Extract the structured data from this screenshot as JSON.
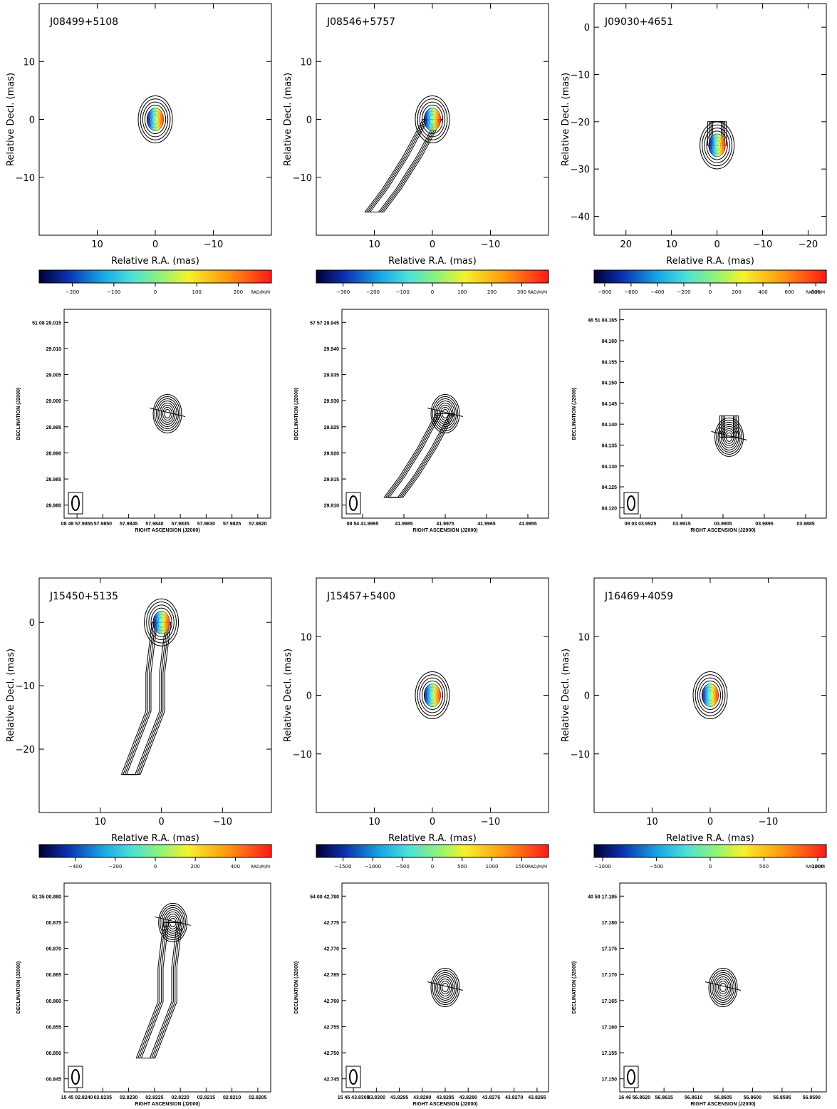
{
  "colorbar_unit": "RAD/M/M",
  "chart_data": [
    {
      "type": "contour",
      "source": "J08499+5108",
      "rm_panel": {
        "xlabel": "Relative R.A. (mas)",
        "ylabel": "Relative Decl. (mas)",
        "xlim": [
          20,
          -20
        ],
        "ylim": [
          -20,
          20
        ],
        "xticks": [
          10,
          0,
          -10
        ],
        "yticks": [
          10,
          0,
          -10
        ],
        "core": [
          0,
          0
        ],
        "jet": [],
        "colorbar": {
          "range": [
            -280,
            280
          ],
          "ticks": [
            -200,
            -100,
            0,
            100,
            200
          ]
        }
      },
      "evpa_panel": {
        "xlabel": "RIGHT ASCENSION (J2000)",
        "ylabel": "DECLINATION (J2000)",
        "x_ticks": [
          "08 49 57.9855",
          "57.9850",
          "57.9845",
          "57.9840",
          "57.9835",
          "57.9830",
          "57.9825",
          "57.9820"
        ],
        "y_ticks": [
          "51 08 29.015",
          "29.010",
          "29.005",
          "29.000",
          "28.995",
          "28.990",
          "28.985",
          "28.980"
        ]
      }
    },
    {
      "type": "contour",
      "source": "J08546+5757",
      "rm_panel": {
        "xlabel": "Relative R.A. (mas)",
        "ylabel": "Relative Decl. (mas)",
        "xlim": [
          20,
          -20
        ],
        "ylim": [
          -20,
          20
        ],
        "xticks": [
          10,
          0,
          -10
        ],
        "yticks": [
          10,
          0,
          -10
        ],
        "core": [
          0,
          0
        ],
        "jet": [
          [
            3.5,
            -6.5
          ],
          [
            7,
            -12
          ],
          [
            10,
            -16
          ]
        ],
        "colorbar": {
          "range": [
            -390,
            390
          ],
          "ticks": [
            -300,
            -200,
            -100,
            0,
            100,
            200,
            300
          ]
        }
      },
      "evpa_panel": {
        "xlabel": "RIGHT ASCENSION (J2000)",
        "ylabel": "DECLINATION (J2000)",
        "x_ticks": [
          "08 54 41.9995",
          "41.9985",
          "41.9975",
          "41.9965",
          "41.9955"
        ],
        "y_ticks": [
          "57 57 29.945",
          "29.940",
          "29.935",
          "29.930",
          "29.925",
          "29.920",
          "29.915",
          "29.910"
        ]
      }
    },
    {
      "type": "contour",
      "source": "J09030+4651",
      "rm_panel": {
        "xlabel": "Relative R.A. (mas)",
        "ylabel": "Relative Decl. (mas)",
        "xlim": [
          27,
          -24
        ],
        "ylim": [
          -44,
          5
        ],
        "xticks": [
          20,
          10,
          0,
          -10,
          -20
        ],
        "yticks": [
          0,
          -10,
          -20,
          -30,
          -40
        ],
        "core": [
          0,
          -25
        ],
        "jet": [
          [
            0,
            -20
          ]
        ],
        "colorbar": {
          "range": [
            -880,
            880
          ],
          "ticks": [
            -800,
            -600,
            -400,
            -200,
            0,
            200,
            400,
            600,
            800
          ]
        }
      },
      "evpa_panel": {
        "xlabel": "RIGHT ASCENSION (J2000)",
        "ylabel": "DECLINATION (J2000)",
        "x_ticks": [
          "09 03 03.9925",
          "03.9915",
          "03.9905",
          "03.9895",
          "03.9885"
        ],
        "y_ticks": [
          "46 51 04.165",
          "04.160",
          "04.155",
          "04.150",
          "04.145",
          "04.140",
          "04.135",
          "04.130",
          "04.125",
          "04.120"
        ]
      }
    },
    {
      "type": "contour",
      "source": "J15450+5135",
      "rm_panel": {
        "xlabel": "Relative R.A. (mas)",
        "ylabel": "Relative Decl. (mas)",
        "xlim": [
          20,
          -18
        ],
        "ylim": [
          -30,
          7
        ],
        "xticks": [
          10,
          0,
          -10
        ],
        "yticks": [
          0,
          -10,
          -20
        ],
        "core": [
          0,
          0
        ],
        "jet": [
          [
            1,
            -8
          ],
          [
            1,
            -14
          ],
          [
            3,
            -19
          ],
          [
            5,
            -24
          ]
        ],
        "colorbar": {
          "range": [
            -580,
            580
          ],
          "ticks": [
            -400,
            -200,
            0,
            200,
            400
          ]
        }
      },
      "evpa_panel": {
        "xlabel": "RIGHT ASCENSION (J2000)",
        "ylabel": "DECLINATION (J2000)",
        "x_ticks": [
          "15 45 02.8240",
          "02.8235",
          "02.8230",
          "02.8225",
          "02.8220",
          "02.8215",
          "02.8210",
          "02.8205"
        ],
        "y_ticks": [
          "51 35 00.880",
          "00.875",
          "00.870",
          "00.865",
          "00.860",
          "00.855",
          "00.850",
          "00.845"
        ]
      }
    },
    {
      "type": "contour",
      "source": "J15457+5400",
      "rm_panel": {
        "xlabel": "Relative R.A. (mas)",
        "ylabel": "Relative Decl. (mas)",
        "xlim": [
          20,
          -20
        ],
        "ylim": [
          -20,
          20
        ],
        "xticks": [
          10,
          0,
          -10
        ],
        "yticks": [
          10,
          0,
          -10
        ],
        "core": [
          0,
          0
        ],
        "jet": [],
        "colorbar": {
          "range": [
            -1950,
            1950
          ],
          "ticks": [
            -1500,
            -1000,
            -500,
            0,
            500,
            1000,
            1500
          ]
        }
      },
      "evpa_panel": {
        "xlabel": "RIGHT ASCENSION (J2000)",
        "ylabel": "DECLINATION (J2000)",
        "x_ticks": [
          "15 45 43.8305",
          "43.8300",
          "43.8295",
          "43.8290",
          "43.8285",
          "43.8280",
          "43.8275",
          "43.8270",
          "43.8265"
        ],
        "y_ticks": [
          "54 00 42.780",
          "42.775",
          "42.770",
          "42.765",
          "42.760",
          "42.755",
          "42.750",
          "42.745"
        ]
      }
    },
    {
      "type": "contour",
      "source": "J16469+4059",
      "rm_panel": {
        "xlabel": "Relative R.A. (mas)",
        "ylabel": "Relative Decl. (mas)",
        "xlim": [
          20,
          -20
        ],
        "ylim": [
          -20,
          20
        ],
        "xticks": [
          10,
          0,
          -10
        ],
        "yticks": [
          10,
          0,
          -10
        ],
        "core": [
          0,
          0
        ],
        "jet": [],
        "colorbar": {
          "range": [
            -1080,
            1080
          ],
          "ticks": [
            -1000,
            -500,
            0,
            500,
            1000
          ]
        }
      },
      "evpa_panel": {
        "xlabel": "RIGHT ASCENSION (J2000)",
        "ylabel": "DECLINATION (J2000)",
        "x_ticks": [
          "16 46 56.8620",
          "56.8615",
          "56.8610",
          "56.8605",
          "56.8600",
          "56.8595",
          "56.8590"
        ],
        "y_ticks": [
          "40 59 17.185",
          "17.180",
          "17.175",
          "17.170",
          "17.165",
          "17.160",
          "17.155",
          "17.150"
        ]
      }
    }
  ]
}
